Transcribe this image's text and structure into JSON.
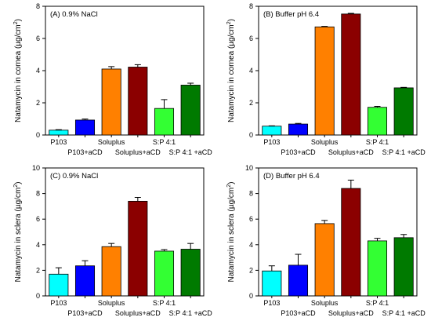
{
  "chart_data": [
    {
      "type": "bar",
      "title": "(A) 0.9% NaCl",
      "ylabel": "Natamycin in cornea (µg/cm²)",
      "ylabel_text": "Natamycin in cornea (µg/cm",
      "ylabel_sup": "2",
      "ylabel_end": ")",
      "ylim": [
        0,
        8
      ],
      "yticks": [
        0,
        2,
        4,
        6,
        8
      ],
      "categories": [
        "P103",
        "P103+aCD",
        "Soluplus",
        "Soluplus+aCD",
        "S:P 4:1",
        "S:P 4:1 +aCD"
      ],
      "values": [
        0.3,
        0.93,
        4.1,
        4.22,
        1.65,
        3.1
      ],
      "errors": [
        0.03,
        0.06,
        0.15,
        0.15,
        0.55,
        0.12
      ],
      "colors": [
        "#00ffff",
        "#0000ff",
        "#ff8000",
        "#8b0000",
        "#33ff33",
        "#007a00"
      ]
    },
    {
      "type": "bar",
      "title": "(B) Buffer pH 6.4",
      "ylabel": "Natamycin in cornea (µg/cm²)",
      "ylabel_text": "Natamycin in cornea (µg/cm",
      "ylabel_sup": "2",
      "ylabel_end": ")",
      "ylim": [
        0,
        8
      ],
      "yticks": [
        0,
        2,
        4,
        6,
        8
      ],
      "categories": [
        "P103",
        "P103+aCD",
        "Soluplus",
        "Soluplus+aCD",
        "S:P 4:1",
        "S:P 4:1 +aCD"
      ],
      "values": [
        0.55,
        0.68,
        6.72,
        7.52,
        1.72,
        2.93
      ],
      "errors": [
        0.02,
        0.04,
        0.03,
        0.04,
        0.06,
        0.03
      ],
      "colors": [
        "#00ffff",
        "#0000ff",
        "#ff8000",
        "#8b0000",
        "#33ff33",
        "#007a00"
      ]
    },
    {
      "type": "bar",
      "title": "(C) 0.9% NaCl",
      "ylabel": "Natamycin in sclera (µg/cm²)",
      "ylabel_text": "Natamycin in sclera (µg/cm",
      "ylabel_sup": "2",
      "ylabel_end": ")",
      "ylim": [
        0,
        10
      ],
      "yticks": [
        0,
        2,
        4,
        6,
        8,
        10
      ],
      "categories": [
        "P103",
        "P103+aCD",
        "Soluplus",
        "Soluplus+aCD",
        "S:P 4:1",
        "S:P 4:1 +aCD"
      ],
      "values": [
        1.7,
        2.35,
        3.85,
        7.4,
        3.5,
        3.65
      ],
      "errors": [
        0.5,
        0.4,
        0.25,
        0.3,
        0.12,
        0.45
      ],
      "colors": [
        "#00ffff",
        "#0000ff",
        "#ff8000",
        "#8b0000",
        "#33ff33",
        "#007a00"
      ]
    },
    {
      "type": "bar",
      "title": "(D) Buffer pH 6.4",
      "ylabel": "Natamycin in sclera (µg/cm²)",
      "ylabel_text": "Natamycin in sclera (µg/cm",
      "ylabel_sup": "2",
      "ylabel_end": ")",
      "ylim": [
        0,
        10
      ],
      "yticks": [
        0,
        2,
        4,
        6,
        8,
        10
      ],
      "categories": [
        "P103",
        "P103+aCD",
        "Soluplus",
        "Soluplus+aCD",
        "S:P 4:1",
        "S:P 4:1 +aCD"
      ],
      "values": [
        1.95,
        2.4,
        5.65,
        8.4,
        4.3,
        4.55
      ],
      "errors": [
        0.4,
        0.85,
        0.25,
        0.65,
        0.2,
        0.25
      ],
      "colors": [
        "#00ffff",
        "#0000ff",
        "#ff8000",
        "#8b0000",
        "#33ff33",
        "#007a00"
      ]
    }
  ]
}
